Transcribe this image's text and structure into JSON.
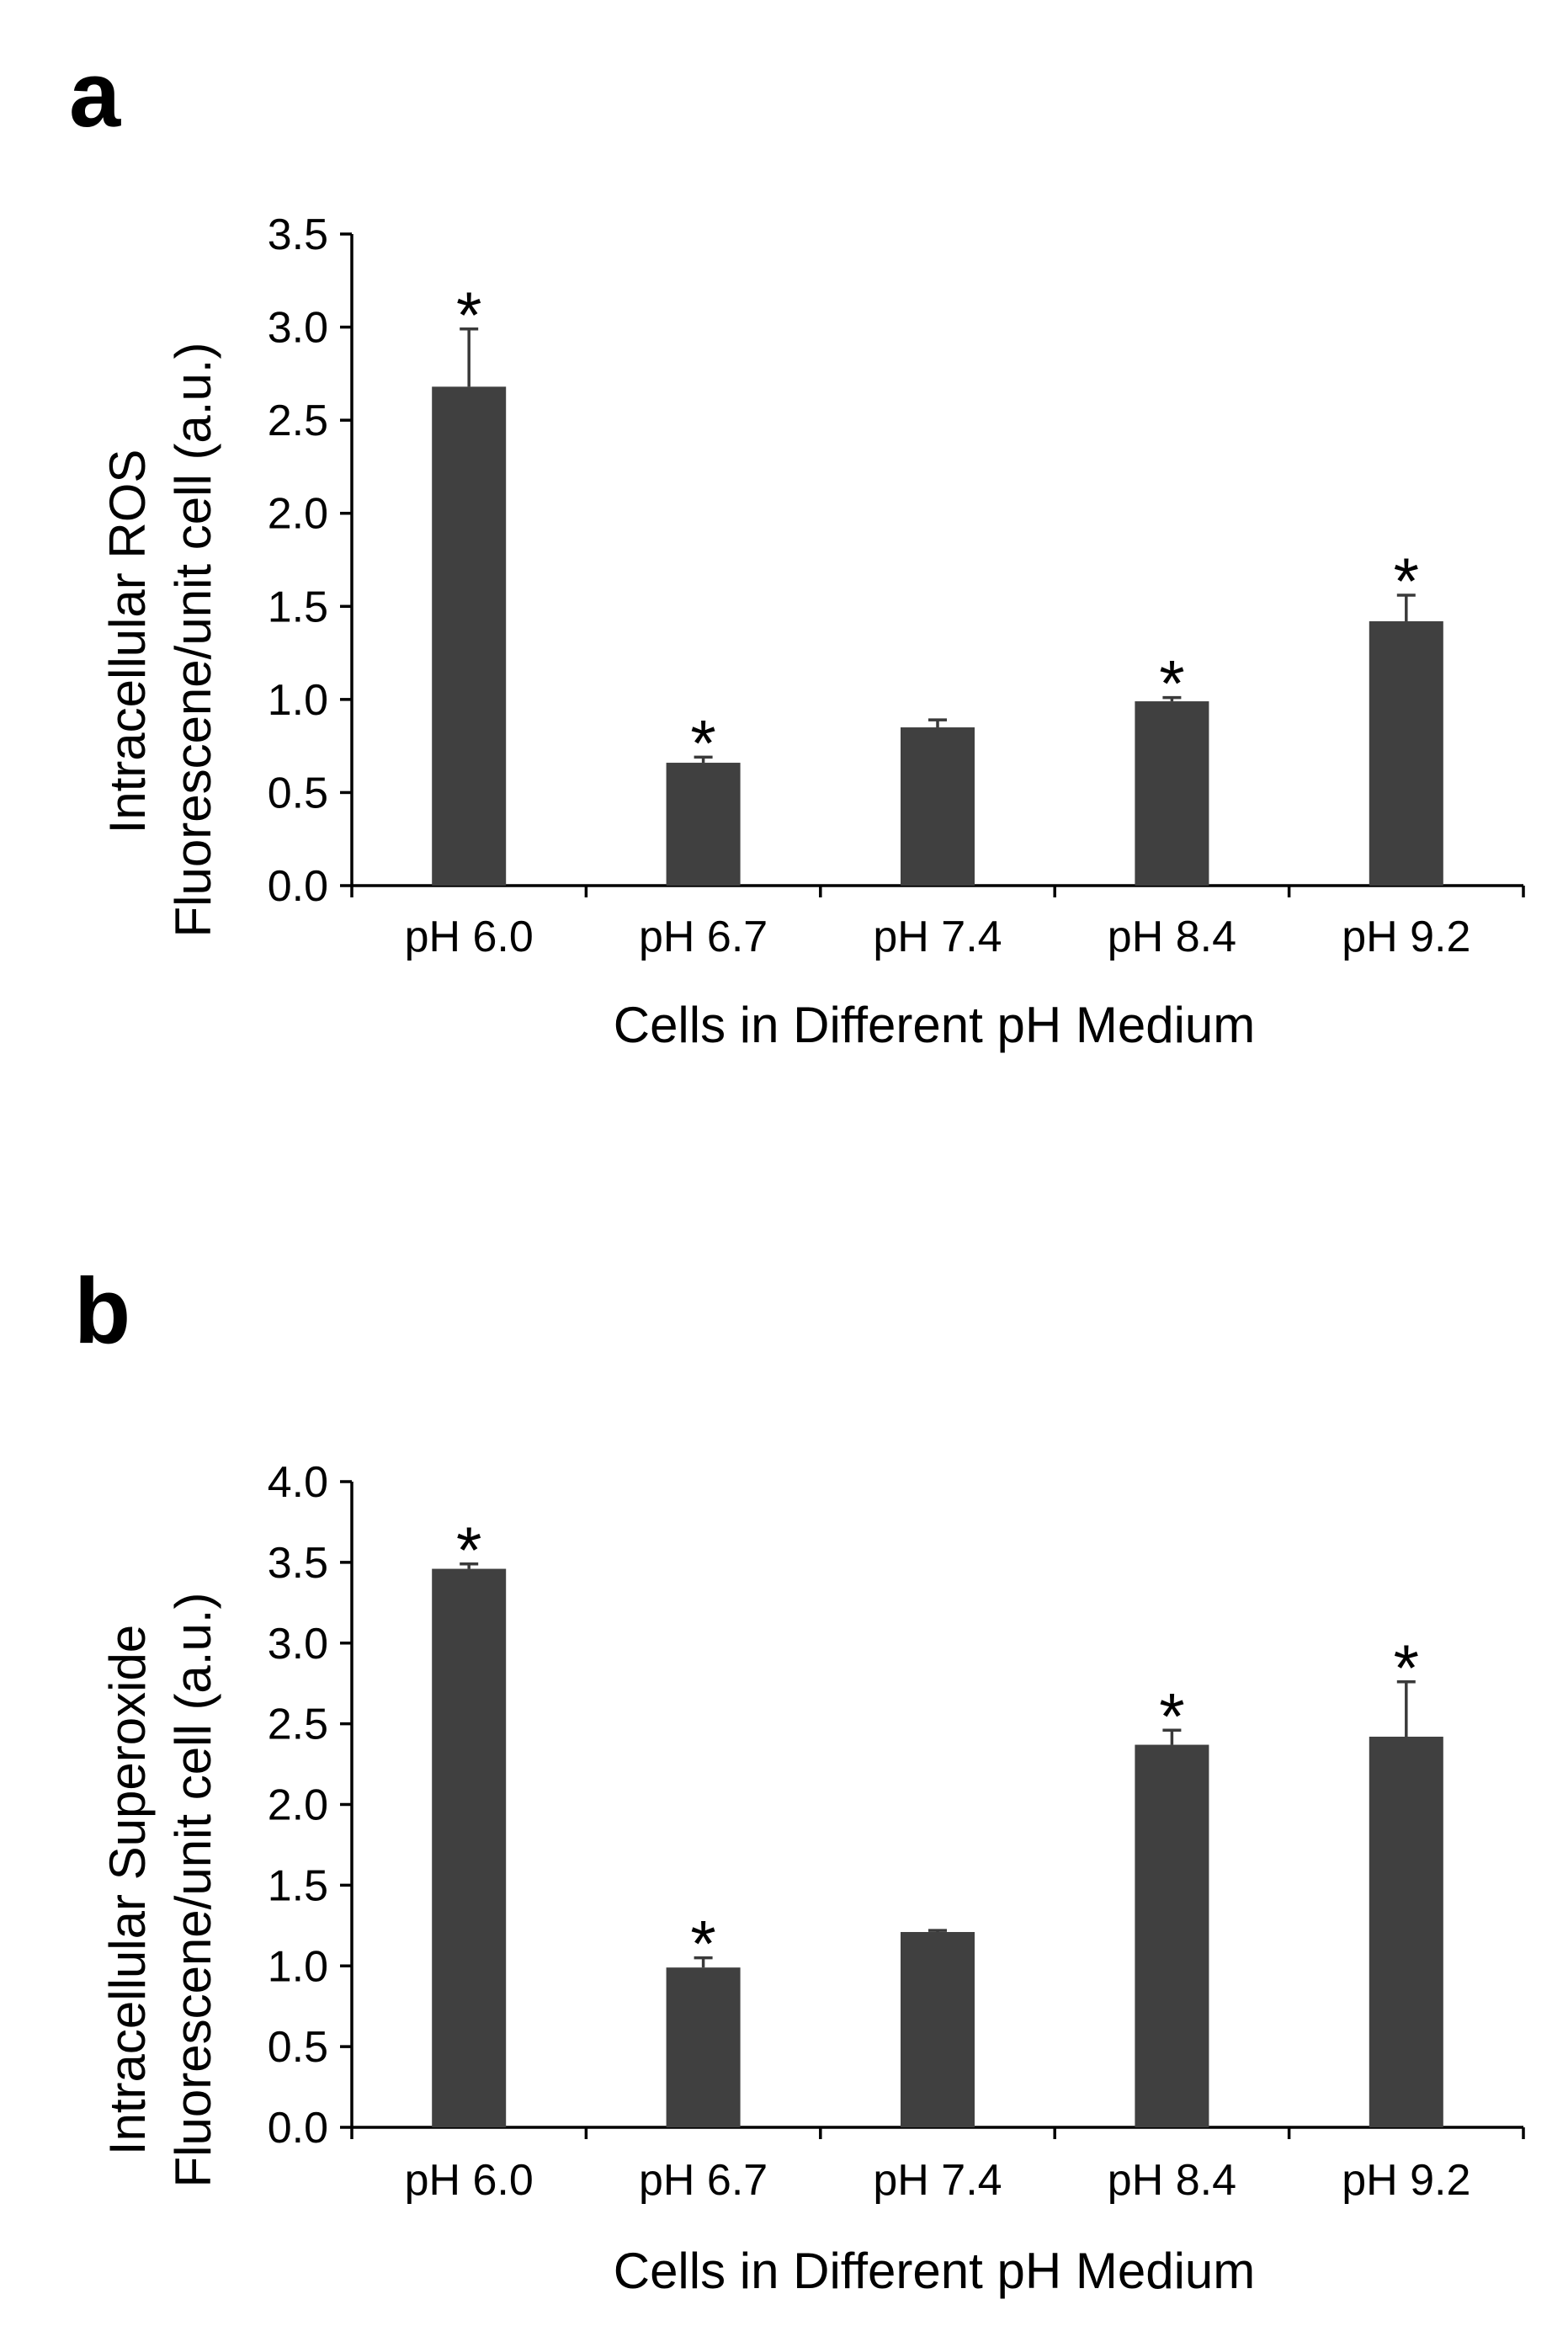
{
  "figure": {
    "panels": [
      "a",
      "b"
    ]
  },
  "colors": {
    "bar": "#404040",
    "error_bar": "#3a3a3a",
    "axis": "#000000"
  },
  "chart_data": [
    {
      "panel": "a",
      "type": "bar",
      "title": "",
      "xlabel": "Cells in Different pH Medium",
      "ylabel": [
        "Intracellular ROS",
        "Fluorescene/unit cell (a.u.)"
      ],
      "categories": [
        "pH 6.0",
        "pH 6.7",
        "pH 7.4",
        "pH 8.4",
        "pH 9.2"
      ],
      "values": [
        2.68,
        0.66,
        0.85,
        0.99,
        1.42
      ],
      "errors": [
        0.31,
        0.03,
        0.04,
        0.02,
        0.14
      ],
      "significant": [
        true,
        true,
        false,
        true,
        true
      ],
      "significance_marker": "*",
      "ylim": [
        0,
        3.5
      ],
      "yticks": [
        "0.0",
        "0.5",
        "1.0",
        "1.5",
        "2.0",
        "2.5",
        "3.0",
        "3.5"
      ],
      "grid": false,
      "legend": "none"
    },
    {
      "panel": "b",
      "type": "bar",
      "title": "",
      "xlabel": "Cells in Different pH Medium",
      "ylabel": [
        "Intracellular Superoxide",
        "Fluorescene/unit cell (a.u.)"
      ],
      "categories": [
        "pH 6.0",
        "pH 6.7",
        "pH 7.4",
        "pH 8.4",
        "pH 9.2"
      ],
      "values": [
        3.46,
        0.99,
        1.21,
        2.37,
        2.42
      ],
      "errors": [
        0.03,
        0.06,
        0.01,
        0.09,
        0.34
      ],
      "significant": [
        true,
        true,
        false,
        true,
        true
      ],
      "significance_marker": "*",
      "ylim": [
        0,
        4.0
      ],
      "yticks": [
        "0.0",
        "0.5",
        "1.0",
        "1.5",
        "2.0",
        "2.5",
        "3.0",
        "3.5",
        "4.0"
      ],
      "grid": false,
      "legend": "none"
    }
  ]
}
